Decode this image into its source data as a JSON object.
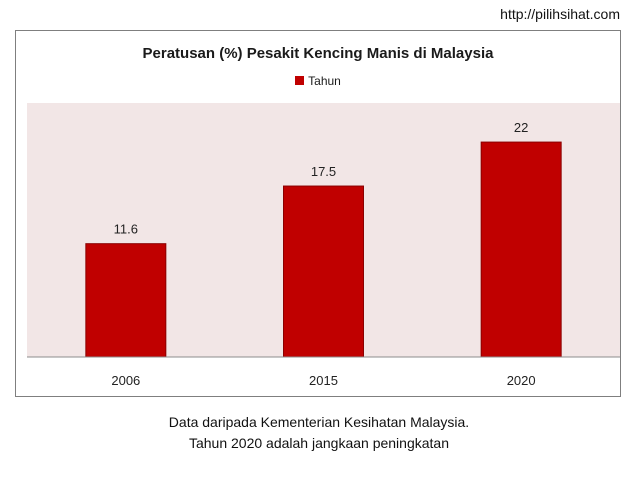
{
  "source_url": "http://pilihsihat.com",
  "chart_data": {
    "type": "bar",
    "title": "Peratusan (%) Pesakit Kencing Manis di Malaysia",
    "categories": [
      "2006",
      "2015",
      "2020"
    ],
    "series": [
      {
        "name": "Tahun",
        "values": [
          11.6,
          17.5,
          22
        ]
      }
    ],
    "data_labels": [
      "11.6",
      "17.5",
      "22"
    ],
    "ylim": [
      0,
      26
    ],
    "legend_position": "top-center",
    "grid": false,
    "colors": {
      "bar": "#c00000",
      "bar_edge": "#8b0000",
      "plot_background": "#f2e6e6",
      "axis": "#8c8c8c"
    }
  },
  "caption": {
    "line1": "Data daripada Kementerian Kesihatan Malaysia.",
    "line2": "Tahun 2020 adalah jangkaan peningkatan"
  }
}
